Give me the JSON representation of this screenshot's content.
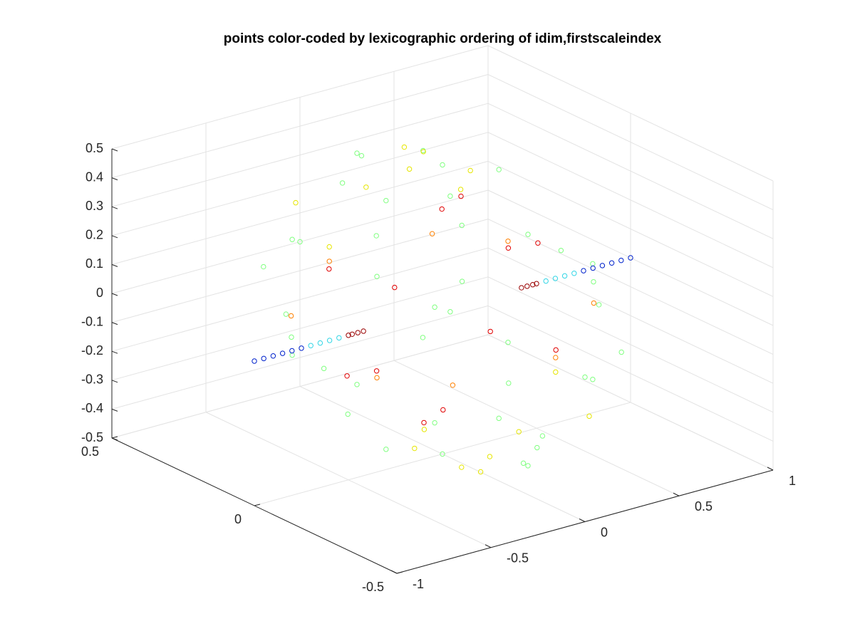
{
  "chart_data": {
    "type": "scatter3d",
    "title": "points color-coded by lexicographic ordering of idim,firstscaleindex",
    "xlim": [
      -1,
      1
    ],
    "ylim": [
      -0.5,
      0.5
    ],
    "zlim": [
      -0.5,
      0.5
    ],
    "xticks": [
      -1,
      -0.5,
      0,
      0.5,
      1
    ],
    "yticks": [
      -0.5,
      0,
      0.5
    ],
    "zticks": [
      -0.5,
      -0.4,
      -0.3,
      -0.2,
      -0.1,
      0,
      0.1,
      0.2,
      0.3,
      0.4,
      0.5
    ],
    "grid": true,
    "series": [
      {
        "color": "#80ff80",
        "x": [
          0,
          0.3,
          -0.3,
          0,
          0,
          0.42,
          -0.42,
          0.42,
          -0.42,
          0,
          0,
          0.3,
          -0.3,
          0.3,
          -0.3,
          0.42,
          -0.42,
          0.42,
          -0.42,
          0,
          0,
          0.3,
          -0.3,
          0,
          0.2,
          -0.2,
          0.2,
          -0.2,
          0.5,
          -0.5,
          0.5,
          -0.5,
          0.15,
          -0.15,
          0.15,
          -0.15,
          0.1,
          -0.1,
          0.1,
          -0.1,
          0.35,
          -0.35
        ],
        "y": [
          0,
          0,
          0,
          0.3,
          -0.3,
          0.25,
          0.25,
          -0.25,
          -0.25,
          0.5,
          -0.5,
          0.43,
          0.43,
          -0.43,
          -0.43,
          0.25,
          0.25,
          -0.25,
          -0.25,
          0.3,
          -0.3,
          0,
          0,
          0,
          0.2,
          -0.2,
          -0.2,
          0.2,
          0.1,
          -0.1,
          -0.2,
          0.2,
          0.45,
          -0.45,
          -0.45,
          0.45,
          0.35,
          -0.35,
          -0.35,
          0.35,
          0.3,
          -0.3
        ],
        "z": [
          0.5,
          0.43,
          0.43,
          0.4,
          0.4,
          0.2,
          0.2,
          0.2,
          0.2,
          0,
          0,
          0,
          0,
          0,
          0,
          -0.2,
          -0.2,
          -0.2,
          -0.2,
          -0.4,
          -0.4,
          -0.43,
          -0.43,
          -0.5,
          0.42,
          0.42,
          -0.42,
          -0.42,
          -0.25,
          0.25,
          0.1,
          -0.1,
          0.2,
          -0.2,
          0.2,
          -0.2,
          0.35,
          -0.35,
          0.35,
          -0.35,
          -0.3,
          0.3
        ]
      },
      {
        "color": "#e6e600",
        "x": [
          0.05,
          -0.1,
          0.1,
          -0.05,
          0.2,
          -0.2,
          0.4,
          -0.4,
          0.25,
          -0.25,
          0.1,
          -0.1,
          0.3,
          -0.3,
          0.45,
          -0.45
        ],
        "y": [
          0.1,
          0.05,
          -0.1,
          -0.1,
          0.4,
          -0.4,
          0.2,
          -0.2,
          -0.35,
          0.35,
          0.2,
          -0.2,
          0.1,
          -0.1,
          -0.1,
          0.1
        ],
        "z": [
          0.49,
          0.48,
          -0.48,
          -0.49,
          0.2,
          -0.2,
          0.25,
          -0.25,
          -0.25,
          0.25,
          0.45,
          -0.45,
          0.38,
          -0.38,
          -0.25,
          0.25
        ]
      },
      {
        "color": "#ff8000",
        "x": [
          0.5,
          -0.5,
          0.45,
          -0.45,
          0.4,
          -0.4,
          0.35,
          -0.35
        ],
        "y": [
          0.1,
          -0.1,
          -0.1,
          0.1,
          0.3,
          -0.3,
          -0.3,
          0.3
        ],
        "z": [
          0.1,
          -0.1,
          -0.2,
          0.2,
          0.05,
          -0.05,
          0.1,
          -0.1
        ]
      },
      {
        "color": "#e00000",
        "x": [
          0.3,
          -0.3,
          0.3,
          -0.3,
          0.25,
          -0.25,
          0.2,
          -0.2,
          0.35,
          -0.35,
          0.28,
          -0.28
        ],
        "y": [
          0.2,
          -0.2,
          -0.2,
          0.2,
          0.1,
          -0.1,
          0.3,
          -0.3,
          0,
          0,
          -0.15,
          0.15
        ],
        "z": [
          0.2,
          -0.2,
          -0.1,
          0.1,
          0.3,
          -0.3,
          -0.1,
          0.1,
          0.15,
          -0.15,
          0.25,
          -0.25
        ]
      },
      {
        "color": "#990000",
        "x": [
          -0.5,
          -0.48,
          -0.45,
          -0.42,
          0.42,
          0.45,
          0.48,
          0.5
        ],
        "y": [
          0,
          0,
          0,
          0,
          0,
          0,
          0,
          0
        ],
        "z": [
          0,
          0,
          0,
          0,
          0,
          0,
          0,
          0
        ]
      },
      {
        "color": "#33d6e6",
        "x": [
          -0.7,
          -0.65,
          -0.6,
          -0.55,
          0.55,
          0.6,
          0.65,
          0.7
        ],
        "y": [
          0,
          0,
          0,
          0,
          0,
          0,
          0,
          0
        ],
        "z": [
          0,
          0,
          0,
          0,
          0,
          0,
          0,
          0
        ]
      },
      {
        "color": "#0022cc",
        "x": [
          -1,
          -0.95,
          -0.9,
          -0.85,
          -0.8,
          -0.75,
          0.75,
          0.8,
          0.85,
          0.9,
          0.95,
          1
        ],
        "y": [
          0,
          0,
          0,
          0,
          0,
          0,
          0,
          0,
          0,
          0,
          0,
          0
        ],
        "z": [
          0,
          0,
          0,
          0,
          0,
          0,
          0,
          0,
          0,
          0,
          0,
          0
        ]
      }
    ]
  }
}
